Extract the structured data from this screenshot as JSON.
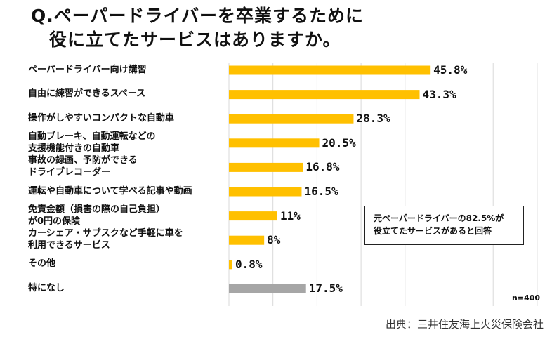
{
  "title": {
    "line1": "Q.ペーパードライバーを卒業するために",
    "line2": "役に立てたサービスはありますか。"
  },
  "annotation": {
    "line1": "元ペーパードライバーの82.5%が",
    "line2": "役立てたサービスがあると回答"
  },
  "sample_size": "n=400",
  "source": "出典：三井住友海上火災保険会社",
  "colors": {
    "bar": "#FFC000",
    "bar_none": "#A6A6A6",
    "grid": "#D9D9D9"
  },
  "chart_data": {
    "type": "bar",
    "orientation": "horizontal",
    "categories": [
      "ペーパードライバー向け講習",
      "自由に練習ができるスペース",
      "操作がしやすいコンパクトな自動車",
      "自動ブレーキ、自動運転などの\n支援機能付きの自動車",
      "事故の録画、予防ができる\nドライブレコーダー",
      "運転や自動車について学べる記事や動画",
      "免責金額（損害の際の自己負担）\nが0円の保険",
      "カーシェア・サブスクなど手軽に車を\n利用できるサービス",
      "その他",
      "特になし"
    ],
    "values": [
      45.8,
      43.3,
      28.3,
      20.5,
      16.8,
      16.5,
      11,
      8,
      0.8,
      17.5
    ],
    "value_labels": [
      "45.8%",
      "43.3%",
      "28.3%",
      "20.5%",
      "16.8%",
      "16.5%",
      "11%",
      "8%",
      "0.8%",
      "17.5%"
    ],
    "xlim": [
      0,
      70
    ],
    "grid": true,
    "highlight_gray": [
      "特になし"
    ]
  }
}
